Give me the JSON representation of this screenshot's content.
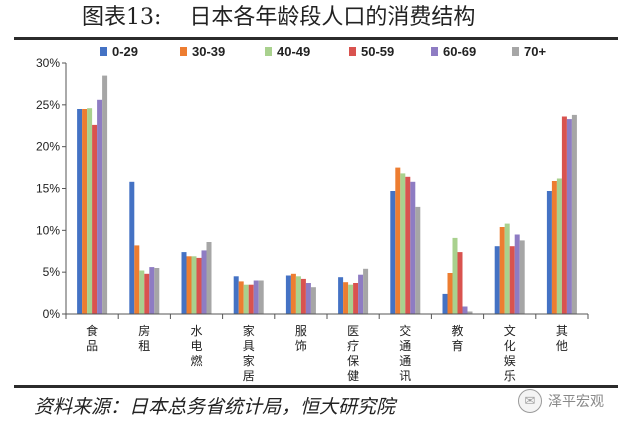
{
  "header": {
    "title": "图表13:    日本各年龄段人口的消费结构"
  },
  "footer": {
    "source": "资料来源：日本总务省统计局，恒大研究院",
    "watermark": "泽平宏观",
    "watermark_icon": "wechat-icon"
  },
  "colors": {
    "0-29": "#4472c4",
    "30-39": "#ed7d31",
    "40-49": "#a9d18e",
    "50-59": "#d9534f",
    "60-69": "#8e7cc3",
    "70+": "#a6a6a6"
  },
  "chart_data": {
    "type": "bar",
    "title": "",
    "xlabel": "",
    "ylabel": "",
    "ylim": [
      0,
      30
    ],
    "yticks": [
      "0%",
      "5%",
      "10%",
      "15%",
      "20%",
      "25%",
      "30%"
    ],
    "legend_position": "top",
    "grid": false,
    "categories": [
      "食品",
      "房租",
      "水电燃",
      "家具家居",
      "服饰",
      "医疗保健",
      "交通通讯",
      "教育",
      "文化娱乐",
      "其他"
    ],
    "series": [
      {
        "name": "0-29",
        "values": [
          24.5,
          15.8,
          7.4,
          4.5,
          4.6,
          4.4,
          14.7,
          2.4,
          8.1,
          14.7
        ]
      },
      {
        "name": "30-39",
        "values": [
          24.5,
          8.2,
          6.9,
          3.9,
          4.8,
          3.8,
          17.5,
          4.9,
          10.4,
          15.9
        ]
      },
      {
        "name": "40-49",
        "values": [
          24.6,
          5.2,
          6.9,
          3.5,
          4.5,
          3.5,
          16.8,
          9.1,
          10.8,
          16.2
        ]
      },
      {
        "name": "50-59",
        "values": [
          22.6,
          4.8,
          6.7,
          3.5,
          4.2,
          3.7,
          16.4,
          7.4,
          8.1,
          23.6
        ]
      },
      {
        "name": "60-69",
        "values": [
          25.6,
          5.6,
          7.6,
          4.0,
          3.7,
          4.7,
          15.8,
          0.9,
          9.5,
          23.3
        ]
      },
      {
        "name": "70+",
        "values": [
          28.5,
          5.5,
          8.6,
          4.0,
          3.2,
          5.4,
          12.8,
          0.3,
          8.8,
          23.8
        ]
      }
    ]
  }
}
